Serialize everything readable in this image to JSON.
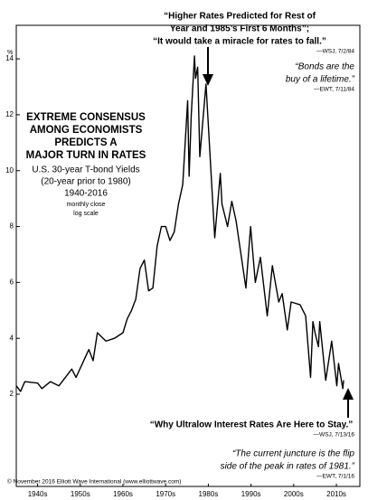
{
  "chart_data": {
    "type": "line",
    "title_lines": [
      "EXTREME CONSENSUS",
      "AMONG ECONOMISTS",
      "PREDICTS A",
      "MAJOR TURN IN RATES"
    ],
    "subtitle_lines": [
      "U.S. 30-year T-bond Yields",
      "(20-year prior to 1980)",
      "1940-2016"
    ],
    "notes": [
      "monthly close",
      "log scale"
    ],
    "y_label": "%",
    "color": "#000000",
    "x": [
      1940,
      1941,
      1942,
      1945,
      1946,
      1948,
      1950,
      1953,
      1954,
      1957,
      1958,
      1959,
      1961,
      1963,
      1965,
      1966,
      1967,
      1968,
      1969,
      1970,
      1971,
      1972,
      1973,
      1974,
      1975,
      1976,
      1977,
      1978,
      1979,
      1980.15,
      1980.5,
      1981.0,
      1981.75,
      1982.0,
      1982.5,
      1983.0,
      1984.45,
      1986.5,
      1987.8,
      1988.2,
      1989.5,
      1990.5,
      1991.5,
      1993.8,
      1994.9,
      1996.0,
      1997.2,
      1998.8,
      2000.0,
      2001.5,
      2002.3,
      2003.5,
      2004.4,
      2006.5,
      2007.8,
      2008.95,
      2009.5,
      2010.0,
      2010.8,
      2011.1,
      2012.5,
      2013.9,
      2015.1,
      2015.5,
      2016.5,
      2016.7
    ],
    "values": [
      2.3,
      2.1,
      2.45,
      2.4,
      2.2,
      2.45,
      2.3,
      2.9,
      2.6,
      3.6,
      3.2,
      4.2,
      3.9,
      4.0,
      4.2,
      4.7,
      5.0,
      5.4,
      6.5,
      6.8,
      5.7,
      5.8,
      7.3,
      8.0,
      8.0,
      7.5,
      7.8,
      8.8,
      9.5,
      12.5,
      9.8,
      12.0,
      14.1,
      13.3,
      13.7,
      10.5,
      13.1,
      7.6,
      9.9,
      8.8,
      8.0,
      8.9,
      8.2,
      5.8,
      8.0,
      6.0,
      6.9,
      4.8,
      6.6,
      5.3,
      5.6,
      4.3,
      5.3,
      5.2,
      4.8,
      2.6,
      4.6,
      4.2,
      3.7,
      4.6,
      2.5,
      3.9,
      2.3,
      3.1,
      2.2,
      2.5
    ],
    "xlim": [
      1940,
      2020.5
    ],
    "ylim": [
      -1.3,
      15.2
    ],
    "yticks": [
      2,
      4,
      6,
      8,
      10,
      12,
      14
    ],
    "xticks": [
      {
        "value": 1945,
        "label": "1940s"
      },
      {
        "value": 1955,
        "label": "1950s"
      },
      {
        "value": 1965,
        "label": "1960s"
      },
      {
        "value": 1975,
        "label": "1970s"
      },
      {
        "value": 1985,
        "label": "1980s"
      },
      {
        "value": 1995,
        "label": "1990s"
      },
      {
        "value": 2005,
        "label": "2000s"
      },
      {
        "value": 2015,
        "label": "2010s"
      }
    ],
    "annotations": [
      {
        "lines": [
          "“Higher Rates Predicted for Rest of",
          "Year and 1985’s First 6 Months”;",
          "“It would take a miracle for rates to fall.”"
        ],
        "source": "—WSJ, 7/2/84"
      },
      {
        "lines": [
          "“Bonds are the",
          "buy of a lifetime.”"
        ],
        "source": "—EWT, 7/11/84"
      },
      {
        "lines": [
          "“Why Ultralow Interest Rates Are Here to Stay.”"
        ],
        "source": "—WSJ, 7/13/16"
      },
      {
        "lines": [
          "“The current juncture is the flip",
          "side of the peak in rates of 1981.”"
        ],
        "source": "—EWT, 7/1/16"
      }
    ],
    "footer": "© November 2016 Elliott Wave International (www.elliottwave.com)"
  }
}
